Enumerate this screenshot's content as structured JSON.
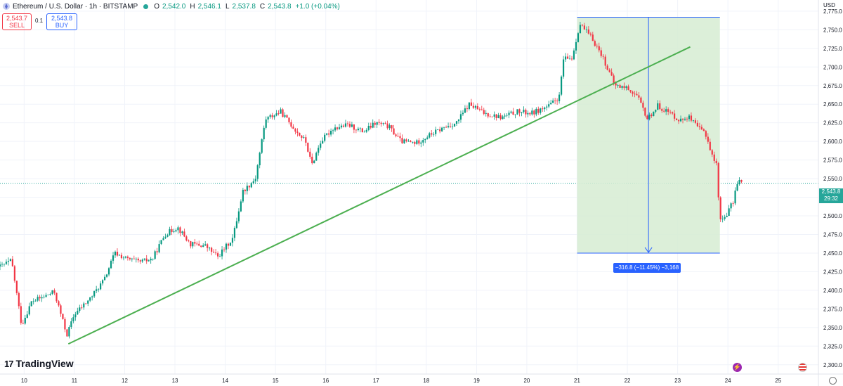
{
  "header": {
    "symbol": "Ethereum / U.S. Dollar · 1h · BITSTAMP",
    "o_label": "O",
    "o_value": "2,542.0",
    "h_label": "H",
    "h_value": "2,546.1",
    "l_label": "L",
    "l_value": "2,537.8",
    "c_label": "C",
    "c_value": "2,543.8",
    "change": "+1.0 (+0.04%)"
  },
  "trade": {
    "sell_price": "2,543.7",
    "sell_label": "SELL",
    "quantity": "0.1",
    "buy_price": "2,543.8",
    "buy_label": "BUY"
  },
  "currency": "USD",
  "last_price": "2,543.8",
  "countdown": "29:32",
  "logo": {
    "mark": "17",
    "name": "TradingView"
  },
  "measure_label": "−316.8 (−11.45%) −3,168",
  "chart_data": {
    "type": "candlestick",
    "interval": "1h",
    "ylim": [
      2287.5,
      2790
    ],
    "y_ticks": [
      "2,300.0",
      "2,325.0",
      "2,350.0",
      "2,375.0",
      "2,400.0",
      "2,425.0",
      "2,450.0",
      "2,475.0",
      "2,500.0",
      "2,525.0",
      "2,550.0",
      "2,575.0",
      "2,600.0",
      "2,625.0",
      "2,650.0",
      "2,675.0",
      "2,700.0",
      "2,725.0",
      "2,750.0",
      "2,775.0"
    ],
    "x_ticks": [
      "10",
      "11",
      "12",
      "13",
      "14",
      "15",
      "16",
      "17",
      "18",
      "19",
      "20",
      "21",
      "22",
      "23",
      "24",
      "25"
    ],
    "x_range": [
      9.52,
      25.8
    ],
    "colors": {
      "up": "#089981",
      "down": "#f23645",
      "trendline": "#4caf50",
      "measure_fill": "#d6ecd2",
      "measure_line": "#2962ff",
      "price_line": "#26a69a"
    },
    "last_price": 2543.8,
    "trendline": {
      "start": [
        10.88,
        2328
      ],
      "end": [
        23.25,
        2727
      ]
    },
    "measure": {
      "start_x": 21.0,
      "end_x": 23.84,
      "top": 2766.8,
      "bottom": 2450.0
    },
    "anchors": [
      [
        9.52,
        2432
      ],
      [
        9.75,
        2440
      ],
      [
        9.95,
        2353
      ],
      [
        10.15,
        2385
      ],
      [
        10.35,
        2390
      ],
      [
        10.6,
        2398
      ],
      [
        10.85,
        2340
      ],
      [
        11.0,
        2368
      ],
      [
        11.3,
        2388
      ],
      [
        11.6,
        2415
      ],
      [
        11.8,
        2450
      ],
      [
        12.05,
        2442
      ],
      [
        12.3,
        2438
      ],
      [
        12.55,
        2442
      ],
      [
        12.8,
        2475
      ],
      [
        13.05,
        2485
      ],
      [
        13.3,
        2462
      ],
      [
        13.6,
        2460
      ],
      [
        13.85,
        2445
      ],
      [
        14.15,
        2470
      ],
      [
        14.35,
        2533
      ],
      [
        14.6,
        2550
      ],
      [
        14.8,
        2630
      ],
      [
        15.1,
        2640
      ],
      [
        15.4,
        2615
      ],
      [
        15.6,
        2600
      ],
      [
        15.72,
        2568
      ],
      [
        15.9,
        2600
      ],
      [
        16.15,
        2618
      ],
      [
        16.45,
        2622
      ],
      [
        16.75,
        2613
      ],
      [
        17.0,
        2625
      ],
      [
        17.25,
        2620
      ],
      [
        17.5,
        2600
      ],
      [
        17.8,
        2598
      ],
      [
        18.1,
        2610
      ],
      [
        18.4,
        2620
      ],
      [
        18.6,
        2625
      ],
      [
        18.85,
        2650
      ],
      [
        19.15,
        2638
      ],
      [
        19.5,
        2632
      ],
      [
        19.8,
        2640
      ],
      [
        20.1,
        2638
      ],
      [
        20.45,
        2648
      ],
      [
        20.65,
        2660
      ],
      [
        20.72,
        2710
      ],
      [
        20.9,
        2712
      ],
      [
        21.05,
        2758
      ],
      [
        21.3,
        2738
      ],
      [
        21.5,
        2715
      ],
      [
        21.75,
        2675
      ],
      [
        22.0,
        2672
      ],
      [
        22.2,
        2660
      ],
      [
        22.4,
        2630
      ],
      [
        22.6,
        2648
      ],
      [
        22.85,
        2638
      ],
      [
        23.05,
        2628
      ],
      [
        23.2,
        2634
      ],
      [
        23.4,
        2618
      ],
      [
        23.55,
        2612
      ],
      [
        23.7,
        2578
      ],
      [
        23.78,
        2568
      ],
      [
        23.84,
        2492
      ],
      [
        23.95,
        2500
      ],
      [
        24.1,
        2518
      ],
      [
        24.2,
        2550
      ],
      [
        24.28,
        2543.8
      ]
    ]
  }
}
